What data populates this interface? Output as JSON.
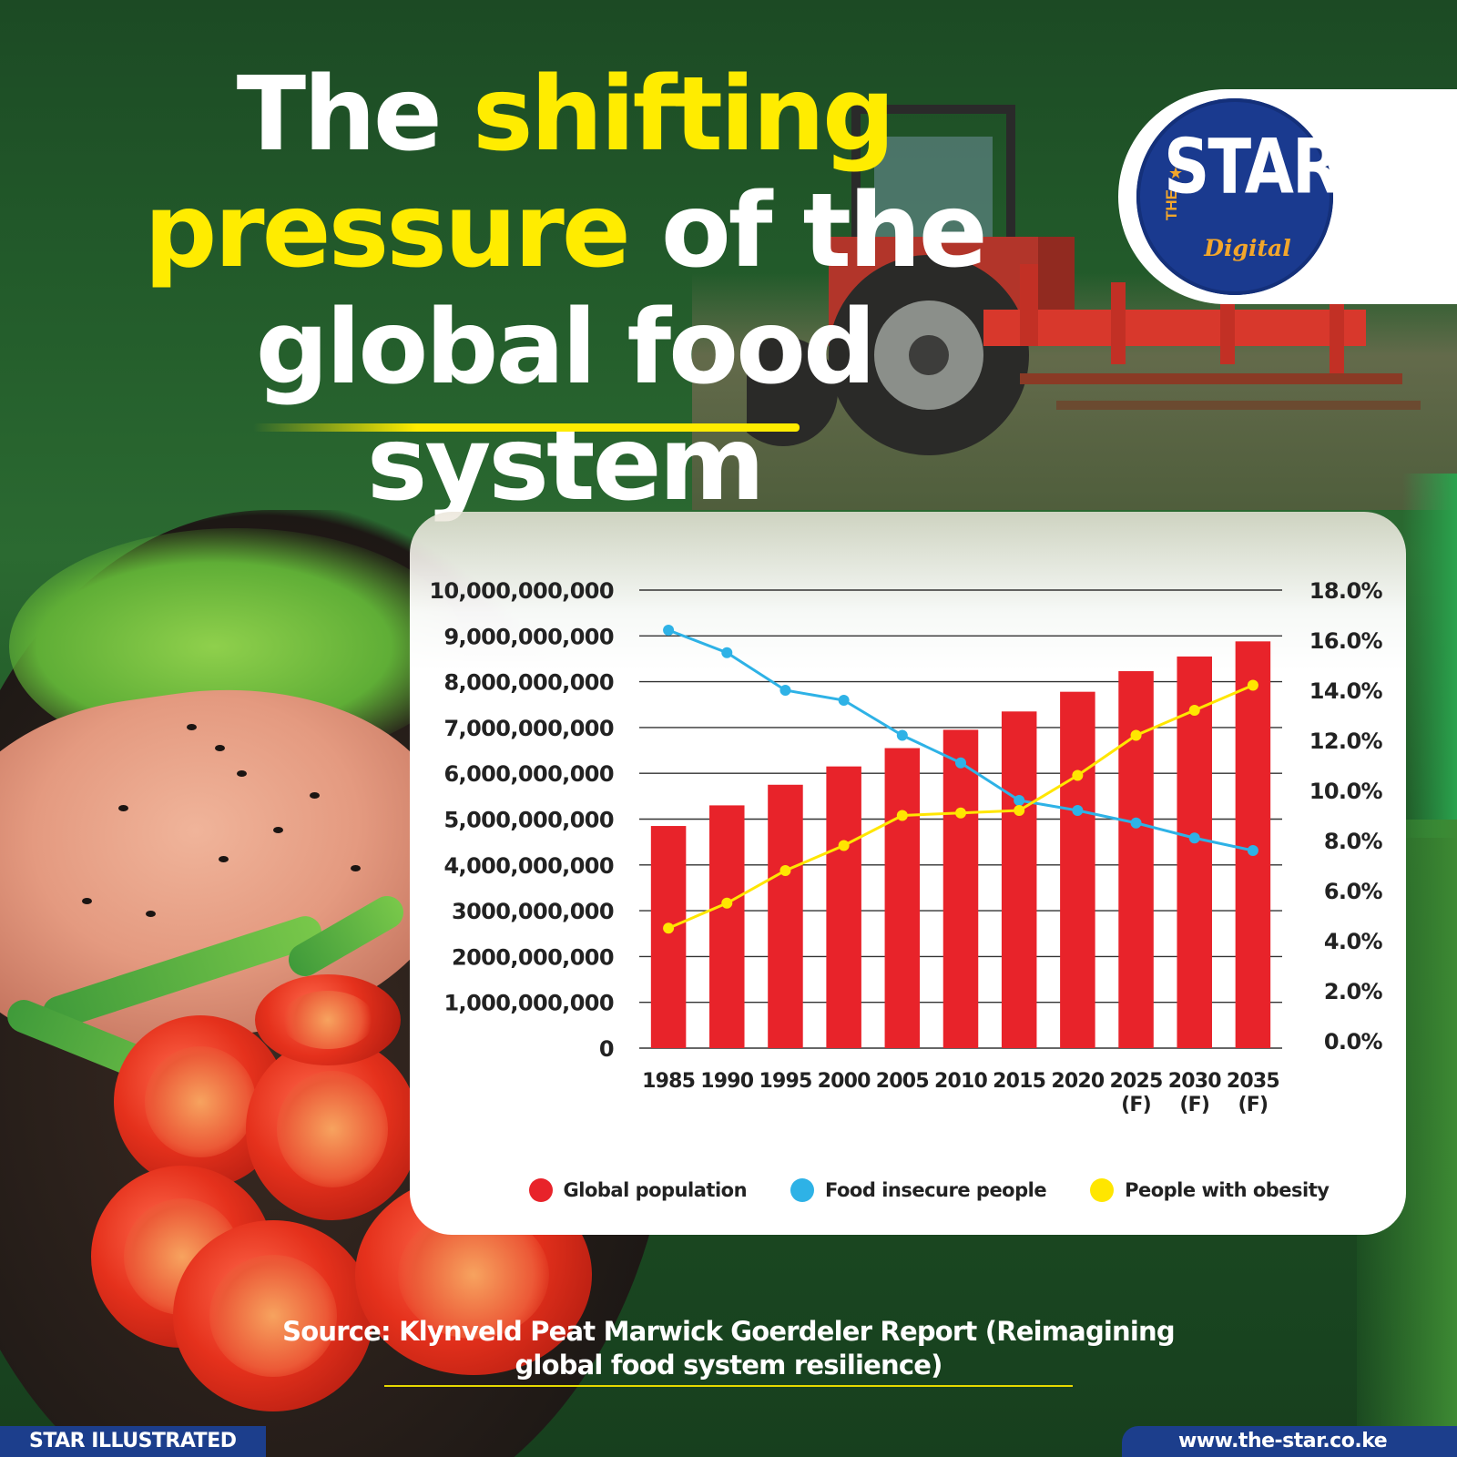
{
  "header": {
    "title_part1": "The ",
    "title_highlight1": "shifting",
    "title_highlight2": "pressure",
    "title_part2": " of the global food system"
  },
  "logo": {
    "the": "THE",
    "star": "STAR",
    "digital": "Digital"
  },
  "colors": {
    "population": "#e8232a",
    "food_insecure": "#2eb2e6",
    "obesity": "#ffe600",
    "highlight": "#ffec00",
    "footer": "#1c3e8c"
  },
  "chart_data": {
    "type": "bar",
    "categories": [
      "1985",
      "1990",
      "1995",
      "2000",
      "2005",
      "2010",
      "2015",
      "2020",
      "2025\n(F)",
      "2030\n(F)",
      "2035\n(F)"
    ],
    "series": [
      {
        "name": "Global population",
        "type": "bar",
        "axis": "left",
        "values": [
          4850000000,
          5300000000,
          5750000000,
          6150000000,
          6550000000,
          6950000000,
          7350000000,
          7780000000,
          8230000000,
          8550000000,
          8880000000
        ]
      },
      {
        "name": "Food insecure people",
        "type": "line",
        "axis": "right",
        "values": [
          16.4,
          15.5,
          14.0,
          13.6,
          12.2,
          11.1,
          9.6,
          9.2,
          8.7,
          8.1,
          7.6
        ]
      },
      {
        "name": "People with obesity",
        "type": "line",
        "axis": "right",
        "values": [
          4.5,
          5.5,
          6.8,
          7.8,
          9.0,
          9.1,
          9.2,
          10.6,
          12.2,
          13.2,
          14.2
        ]
      }
    ],
    "y_left": {
      "ylim": [
        0,
        10000000000
      ],
      "tick_labels": [
        "0",
        "1,000,000,000",
        "2000,000,000",
        "3000,000,000",
        "4,000,000,000",
        "5,000,000,000",
        "6,000,000,000",
        "7,000,000,000",
        "8,000,000,000",
        "9,000,000,000",
        "10,000,000,000"
      ]
    },
    "y_right": {
      "ylim": [
        0,
        18
      ],
      "tick_labels": [
        "0.0%",
        "2.0%",
        "4.0%",
        "6.0%",
        "8.0%",
        "10.0%",
        "12.0%",
        "14.0%",
        "16.0%",
        "18.0%"
      ]
    },
    "grid": true,
    "legend_position": "bottom"
  },
  "source": {
    "label": "Source:",
    "text_line1": " Klynveld Peat Marwick Goerdeler Report (Reimagining",
    "text_line2": "global food system resilience)"
  },
  "footer": {
    "left": "STAR ILLUSTRATED",
    "right": "www.the-star.co.ke"
  }
}
